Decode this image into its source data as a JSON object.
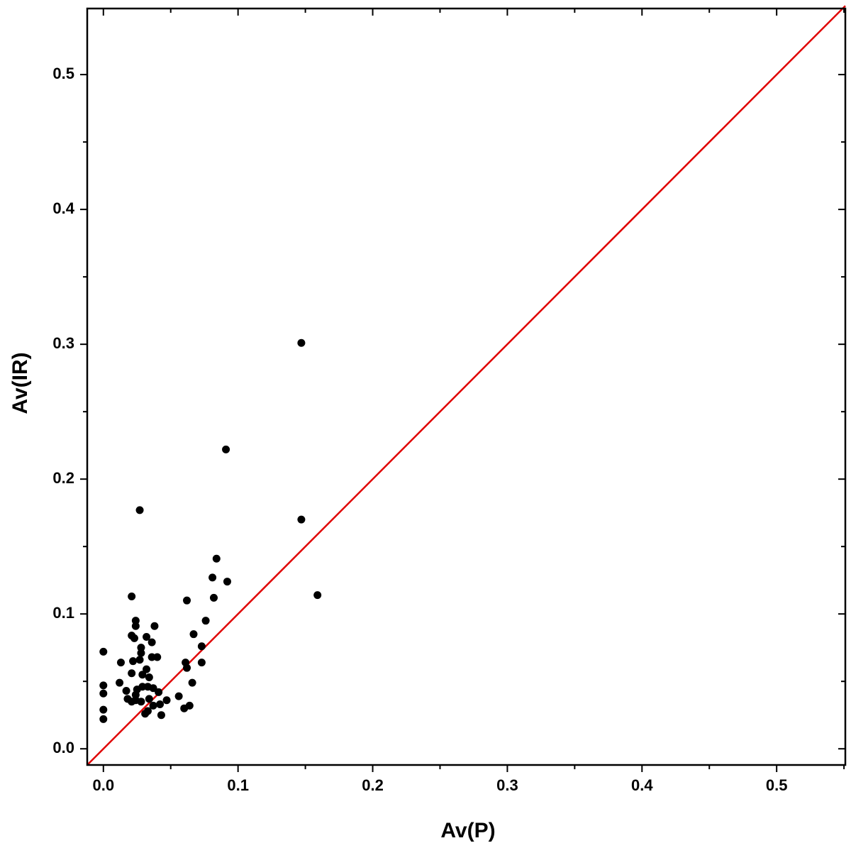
{
  "chart_data": {
    "type": "scatter",
    "xlabel": "Av(P)",
    "ylabel": "Av(IR)",
    "xlim": [
      -0.012,
      0.551
    ],
    "ylim": [
      -0.012,
      0.549
    ],
    "xticks": [
      {
        "value": 0,
        "label": "0.0"
      },
      0.1,
      0.2,
      0.3,
      0.4,
      0.5
    ],
    "yticks": [
      {
        "value": 0,
        "label": "0.0"
      },
      0.1,
      0.2,
      0.3,
      0.4,
      0.5
    ],
    "xminorticks": [
      0.05,
      0.15,
      0.25,
      0.35,
      0.45,
      0.55
    ],
    "yminorticks": [
      0.05,
      0.15,
      0.25,
      0.35,
      0.45
    ],
    "reference_line": {
      "color": "#e00000",
      "x": [
        -0.012,
        0.551
      ],
      "values": [
        -0.012,
        0.551
      ]
    },
    "series": [
      {
        "color": "#000000",
        "x": [
          0.147,
          0.091,
          0.027,
          0.147,
          0.159,
          0.084,
          0.081,
          0.092,
          0.082,
          0.062,
          0.021,
          0.076,
          0.067,
          0.073,
          0.024,
          0.024,
          0.038,
          0.021,
          0.023,
          0.032,
          0.036,
          0.028,
          0.028,
          0.0,
          0.013,
          0.022,
          0.027,
          0.036,
          0.04,
          0.061,
          0.073,
          0.062,
          0.032,
          0.021,
          0.029,
          0.034,
          0.066,
          0.012,
          0.0,
          0.029,
          0.033,
          0.037,
          0.025,
          0.017,
          0.041,
          0.0,
          0.024,
          0.056,
          0.018,
          0.034,
          0.047,
          0.021,
          0.028,
          0.042,
          0.037,
          0.064,
          0.0,
          0.06,
          0.031,
          0.043,
          0.0,
          0.024,
          0.033
        ],
        "values": [
          0.301,
          0.222,
          0.177,
          0.17,
          0.114,
          0.141,
          0.127,
          0.124,
          0.112,
          0.11,
          0.113,
          0.095,
          0.085,
          0.076,
          0.095,
          0.091,
          0.091,
          0.084,
          0.082,
          0.083,
          0.079,
          0.075,
          0.071,
          0.072,
          0.064,
          0.065,
          0.066,
          0.068,
          0.068,
          0.064,
          0.064,
          0.06,
          0.059,
          0.056,
          0.055,
          0.053,
          0.049,
          0.049,
          0.047,
          0.046,
          0.046,
          0.045,
          0.044,
          0.043,
          0.042,
          0.041,
          0.04,
          0.039,
          0.037,
          0.037,
          0.036,
          0.035,
          0.035,
          0.033,
          0.032,
          0.032,
          0.029,
          0.03,
          0.026,
          0.025,
          0.022,
          0.036,
          0.028
        ]
      }
    ]
  }
}
